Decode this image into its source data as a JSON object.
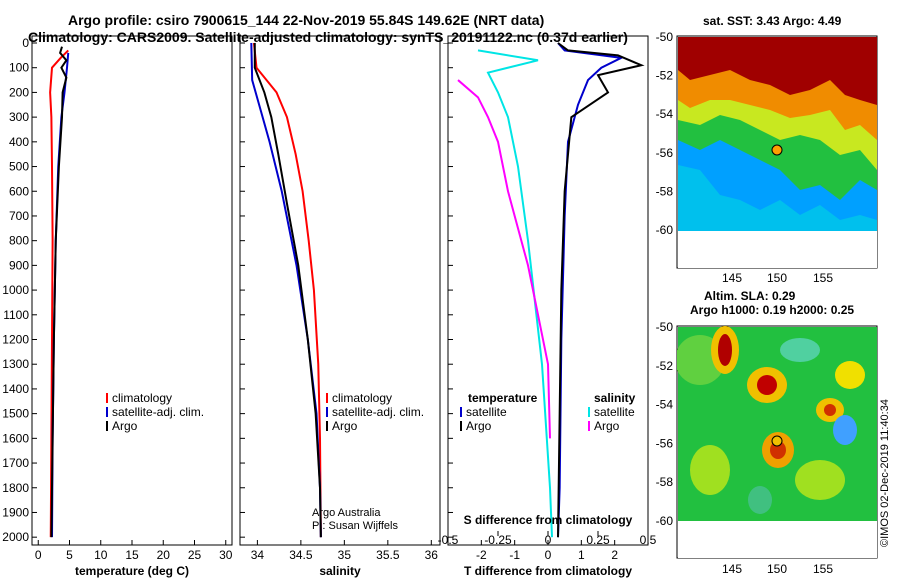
{
  "header": {
    "line1": "Argo profile: csiro 7900615_144 22-Nov-2019 55.84S 149.62E (NRT data)",
    "line2": "Climatology: CARS2009. Satellite-adjusted climatology: synTS_20191122.nc (0.37d earlier)"
  },
  "colors": {
    "climatology": "#ff0000",
    "satellite": "#0000cc",
    "argo": "#000000",
    "satellite_s": "#00e5e5",
    "argo_s": "#ff00ff"
  },
  "chart_data": [
    {
      "type": "line",
      "id": "temperature",
      "xlabel": "temperature (deg C)",
      "ylabel": "",
      "xlim": [
        -1,
        31
      ],
      "ylim": [
        2060,
        0
      ],
      "xticks": [
        0,
        5,
        10,
        15,
        20,
        25,
        30
      ],
      "yticks": [
        0,
        100,
        200,
        300,
        400,
        500,
        600,
        700,
        800,
        900,
        1000,
        1100,
        1200,
        1300,
        1400,
        1500,
        1600,
        1700,
        1800,
        1900,
        2000
      ],
      "legend": [
        "climatology",
        "satellite-adj. clim.",
        "Argo"
      ],
      "series": [
        {
          "name": "climatology",
          "color": "#ff0000",
          "points": [
            [
              4.8,
              30
            ],
            [
              3.6,
              60
            ],
            [
              2.2,
              100
            ],
            [
              1.9,
              200
            ],
            [
              2.1,
              300
            ],
            [
              2.2,
              500
            ],
            [
              2.3,
              800
            ],
            [
              2.2,
              1200
            ],
            [
              2.1,
              1600
            ],
            [
              2.0,
              2000
            ]
          ]
        },
        {
          "name": "satellite-adj. clim.",
          "color": "#0000cc",
          "points": [
            [
              4.8,
              40
            ],
            [
              4.6,
              100
            ],
            [
              4.2,
              200
            ],
            [
              3.7,
              300
            ],
            [
              3.2,
              500
            ],
            [
              2.8,
              800
            ],
            [
              2.5,
              1200
            ],
            [
              2.3,
              1600
            ],
            [
              2.2,
              2000
            ]
          ]
        },
        {
          "name": "Argo",
          "color": "#000000",
          "points": [
            [
              3.8,
              15
            ],
            [
              3.5,
              40
            ],
            [
              4.5,
              70
            ],
            [
              3.7,
              100
            ],
            [
              4.5,
              140
            ],
            [
              3.9,
              200
            ],
            [
              3.8,
              300
            ],
            [
              3.3,
              500
            ],
            [
              2.8,
              800
            ],
            [
              2.5,
              1200
            ],
            [
              2.3,
              1600
            ],
            [
              2.1,
              2000
            ]
          ]
        }
      ]
    },
    {
      "type": "line",
      "id": "salinity",
      "xlabel": "salinity",
      "xlim": [
        33.8,
        36.1
      ],
      "ylim": [
        2060,
        0
      ],
      "xticks": [
        34,
        34.5,
        35,
        35.5,
        36
      ],
      "xticklabels": [
        "34",
        "34.5",
        "35",
        "35.5",
        "36"
      ],
      "legend": [
        "climatology",
        "satellite-adj. clim.",
        "Argo"
      ],
      "series": [
        {
          "name": "climatology",
          "color": "#ff0000",
          "points": [
            [
              33.96,
              0
            ],
            [
              33.99,
              100
            ],
            [
              34.22,
              200
            ],
            [
              34.34,
              300
            ],
            [
              34.44,
              450
            ],
            [
              34.52,
              600
            ],
            [
              34.59,
              800
            ],
            [
              34.65,
              1000
            ],
            [
              34.7,
              1300
            ],
            [
              34.72,
              1600
            ],
            [
              34.73,
              2000
            ]
          ]
        },
        {
          "name": "satellite-adj. clim.",
          "color": "#0000cc",
          "points": [
            [
              33.93,
              0
            ],
            [
              33.94,
              150
            ],
            [
              34.02,
              250
            ],
            [
              34.14,
              400
            ],
            [
              34.28,
              600
            ],
            [
              34.45,
              900
            ],
            [
              34.58,
              1200
            ],
            [
              34.68,
              1500
            ],
            [
              34.72,
              1800
            ],
            [
              34.73,
              2000
            ]
          ]
        },
        {
          "name": "Argo",
          "color": "#000000",
          "points": [
            [
              33.97,
              0
            ],
            [
              33.97,
              100
            ],
            [
              34.08,
              200
            ],
            [
              34.16,
              300
            ],
            [
              34.24,
              450
            ],
            [
              34.34,
              650
            ],
            [
              34.47,
              900
            ],
            [
              34.58,
              1200
            ],
            [
              34.67,
              1500
            ],
            [
              34.72,
              1800
            ],
            [
              34.73,
              2000
            ]
          ]
        }
      ],
      "credit": [
        "Argo Australia",
        "PI: Susan Wijffels"
      ]
    },
    {
      "type": "line",
      "id": "difference",
      "xlabel": "T difference from climatology",
      "xlabel_top": "S difference from climatology",
      "xlim": [
        -3,
        3
      ],
      "ylim": [
        2060,
        0
      ],
      "xticks": [
        -2,
        -1,
        0,
        1,
        2
      ],
      "xticks_top": [
        -0.5,
        -0.25,
        0,
        0.25,
        0.5
      ],
      "xticklabels_top": [
        "-0.5",
        "-0.25",
        "0",
        "0.25",
        "0.5"
      ],
      "legend_left": [
        "temperature",
        "satellite",
        "Argo"
      ],
      "legend_right": [
        "salinity",
        "satellite",
        "Argo"
      ],
      "series": [
        {
          "name": "satellite",
          "color": "#0000cc",
          "points": [
            [
              0.3,
              0
            ],
            [
              0.5,
              30
            ],
            [
              2.2,
              60
            ],
            [
              1.6,
              100
            ],
            [
              1.2,
              150
            ],
            [
              0.9,
              250
            ],
            [
              0.6,
              400
            ],
            [
              0.5,
              700
            ],
            [
              0.4,
              1200
            ],
            [
              0.35,
              1800
            ],
            [
              0.3,
              2000
            ]
          ]
        },
        {
          "name": "Argo",
          "color": "#000000",
          "points": [
            [
              0.3,
              0
            ],
            [
              0.6,
              30
            ],
            [
              2.1,
              50
            ],
            [
              2.8,
              90
            ],
            [
              1.5,
              130
            ],
            [
              1.8,
              200
            ],
            [
              0.7,
              300
            ],
            [
              0.5,
              600
            ],
            [
              0.4,
              1000
            ],
            [
              0.35,
              1500
            ],
            [
              0.3,
              2000
            ]
          ]
        },
        {
          "name": "satellite",
          "color": "#00e5e5",
          "points": [
            [
              -0.35,
              30
            ],
            [
              -0.05,
              70
            ],
            [
              -0.3,
              120
            ],
            [
              -0.25,
              200
            ],
            [
              -0.2,
              300
            ],
            [
              -0.15,
              500
            ],
            [
              -0.1,
              800
            ],
            [
              -0.03,
              1300
            ],
            [
              0.01,
              1800
            ],
            [
              0.02,
              2000
            ]
          ]
        },
        {
          "name": "Argo",
          "color": "#ff00ff",
          "points": [
            [
              -0.45,
              150
            ],
            [
              -0.35,
              220
            ],
            [
              -0.3,
              300
            ],
            [
              -0.25,
              400
            ],
            [
              -0.2,
              600
            ],
            [
              -0.1,
              900
            ],
            [
              0.0,
              1300
            ],
            [
              0.01,
              1600
            ]
          ]
        }
      ]
    }
  ],
  "maps": [
    {
      "id": "sst",
      "title": "sat. SST: 3.43 Argo: 4.49",
      "lat_ticks": [
        "-50",
        "-52",
        "-54",
        "-56",
        "-58",
        "-60"
      ],
      "lon_ticks": [
        "145",
        "150",
        "155"
      ],
      "marker": {
        "lon": 149.62,
        "lat": -55.84
      }
    },
    {
      "id": "sla",
      "title_line1": "Altim. SLA: 0.29",
      "title_line2": "Argo h1000: 0.19 h2000: 0.25",
      "lat_ticks": [
        "-50",
        "-52",
        "-54",
        "-56",
        "-58",
        "-60"
      ],
      "lon_ticks": [
        "145",
        "150",
        "155"
      ],
      "marker": {
        "lon": 149.62,
        "lat": -55.84
      }
    }
  ],
  "footer_stamp": "©IMOS 02-Dec-2019 11:40:34"
}
